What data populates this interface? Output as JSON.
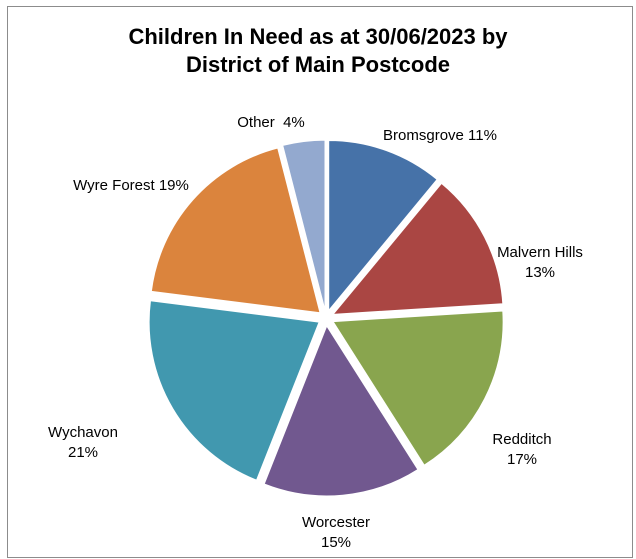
{
  "chart_data": {
    "type": "pie",
    "title_lines": [
      "Children In Need as at 30/06/2023 by",
      "District of Main Postcode"
    ],
    "slices": [
      {
        "name": "Bromsgrove",
        "value": 11,
        "color": "#4672a8",
        "label_lines": [
          "Bromsgrove 11%"
        ]
      },
      {
        "name": "Malvern Hills",
        "value": 13,
        "color": "#aa4643",
        "label_lines": [
          "Malvern Hills",
          "13%"
        ]
      },
      {
        "name": "Redditch",
        "value": 17,
        "color": "#89a54e",
        "label_lines": [
          "Redditch",
          "17%"
        ]
      },
      {
        "name": "Worcester",
        "value": 15,
        "color": "#71588f",
        "label_lines": [
          "Worcester",
          "15%"
        ]
      },
      {
        "name": "Wychavon",
        "value": 21,
        "color": "#4198af",
        "label_lines": [
          "Wychavon",
          "21%"
        ]
      },
      {
        "name": "Wyre Forest",
        "value": 19,
        "color": "#db843d",
        "label_lines": [
          "Wyre Forest 19%"
        ]
      },
      {
        "name": "Other",
        "value": 4,
        "color": "#93a9cf",
        "label_lines": [
          "Other  4%"
        ]
      }
    ]
  }
}
